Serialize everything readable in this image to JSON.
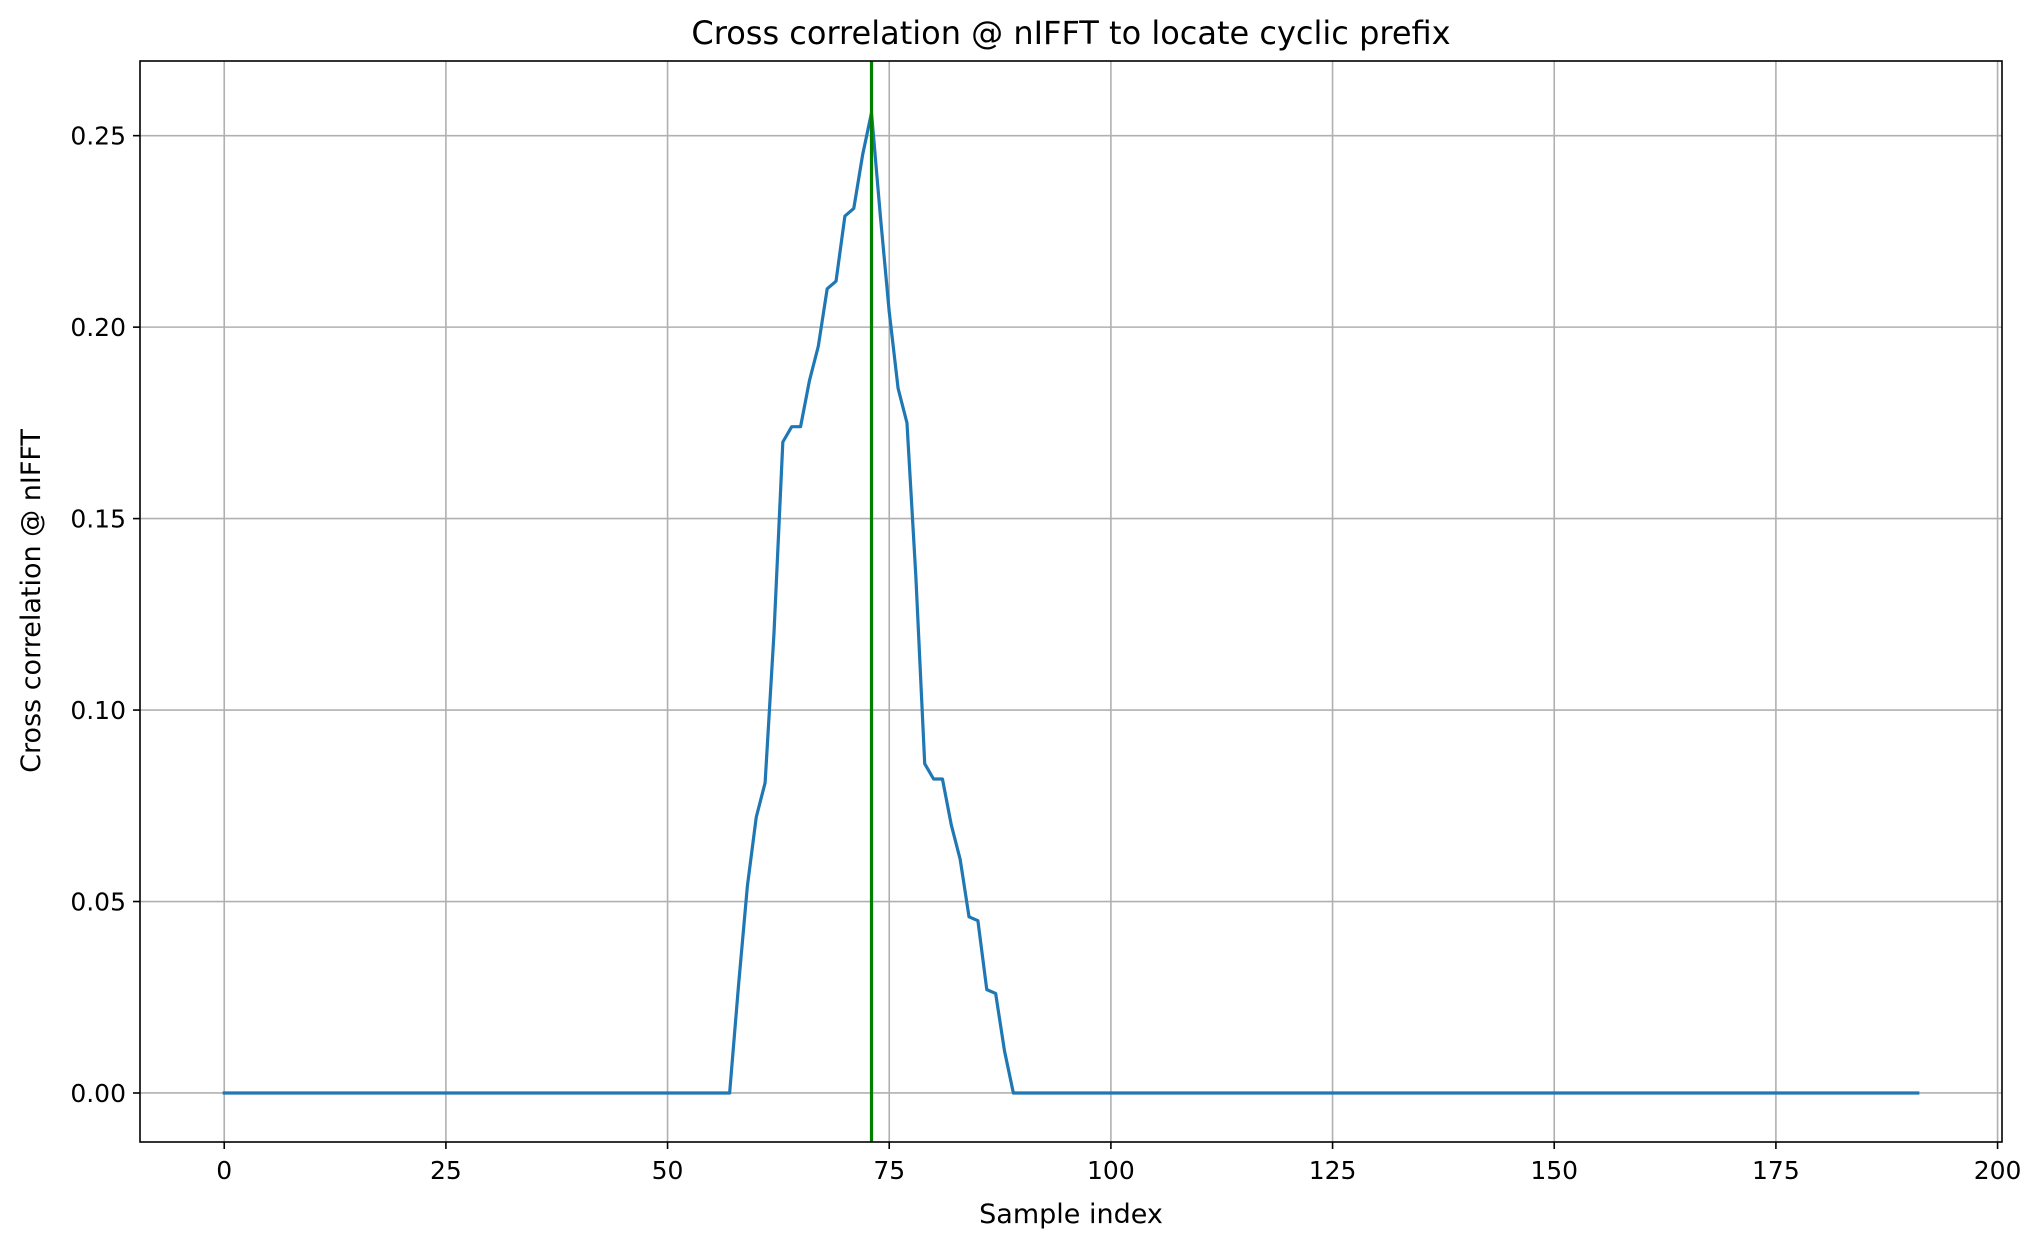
{
  "chart_data": {
    "type": "line",
    "title": "Cross correlation @ nIFFT to locate cyclic prefix",
    "xlabel": "Sample index",
    "ylabel": "Cross correlation @ nIFFT",
    "xlim": [
      -9.5,
      200.5
    ],
    "ylim": [
      -0.0128,
      0.2695
    ],
    "x_ticks": [
      0,
      25,
      50,
      75,
      100,
      125,
      150,
      175,
      200
    ],
    "x_tick_labels": [
      "0",
      "25",
      "50",
      "75",
      "100",
      "125",
      "150",
      "175",
      "200"
    ],
    "y_ticks": [
      0.0,
      0.05,
      0.1,
      0.15,
      0.2,
      0.25
    ],
    "y_tick_labels": [
      "0.00",
      "0.05",
      "0.10",
      "0.15",
      "0.20",
      "0.25"
    ],
    "grid": true,
    "series": [
      {
        "color": "#1f77b4",
        "x": [
          0,
          57,
          58,
          59,
          60,
          61,
          62,
          63,
          64,
          65,
          66,
          67,
          68,
          69,
          70,
          71,
          72,
          73,
          74,
          75,
          76,
          77,
          78,
          79,
          80,
          81,
          82,
          83,
          84,
          85,
          86,
          87,
          88,
          89,
          191
        ],
        "y": [
          0.0,
          0.0,
          0.028,
          0.054,
          0.072,
          0.081,
          0.12,
          0.17,
          0.174,
          0.174,
          0.186,
          0.195,
          0.21,
          0.212,
          0.229,
          0.231,
          0.245,
          0.256,
          0.229,
          0.204,
          0.184,
          0.175,
          0.135,
          0.086,
          0.082,
          0.082,
          0.07,
          0.061,
          0.046,
          0.045,
          0.027,
          0.026,
          0.011,
          0.0,
          0.0
        ]
      }
    ],
    "vlines": [
      {
        "x": 73,
        "color": "#007f00"
      }
    ]
  }
}
